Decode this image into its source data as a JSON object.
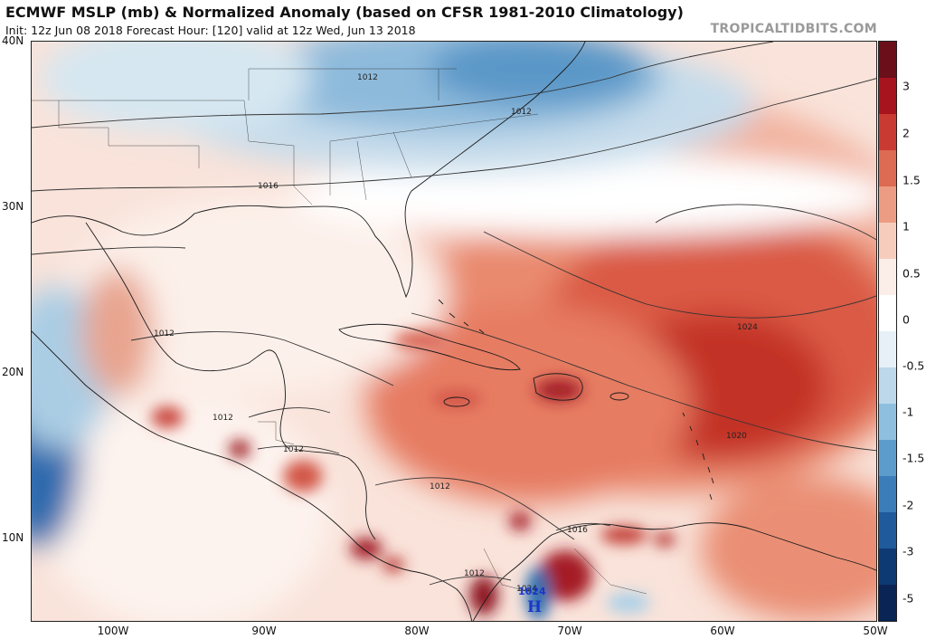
{
  "header": {
    "title": "ECMWF MSLP (mb) & Normalized Anomaly (based on CFSR 1981-2010 Climatology)",
    "subtitle": "Init: 12z Jun 08 2018   Forecast Hour: [120]   valid at 12z Wed, Jun 13 2018",
    "brand": "TROPICALTIDBITS.COM"
  },
  "map": {
    "lat_labels": [
      "40N",
      "30N",
      "20N",
      "10N"
    ],
    "lon_labels": [
      "100W",
      "90W",
      "80W",
      "70W",
      "60W",
      "50W"
    ],
    "isobar_labels": [
      "1012",
      "1012",
      "1016",
      "1012",
      "1012",
      "1012",
      "1012",
      "1012",
      "1016",
      "1024",
      "1020",
      "1024"
    ],
    "high_marker": {
      "letter": "H",
      "value": "1024"
    }
  },
  "colorbar": {
    "labels": [
      "3",
      "2",
      "1.5",
      "1",
      "0.5",
      "0",
      "-0.5",
      "-1",
      "-1.5",
      "-2",
      "-3",
      "-5"
    ],
    "colors": [
      "#6b0f1a",
      "#a8141e",
      "#c93a32",
      "#dd6a52",
      "#ec9c82",
      "#f6cdbd",
      "#fbeee8",
      "#ffffff",
      "#e6f0f6",
      "#bcd8ea",
      "#8ebfdf",
      "#5b9ccc",
      "#3a7db9",
      "#1f5a9c",
      "#0e3a74",
      "#0a2455"
    ]
  }
}
